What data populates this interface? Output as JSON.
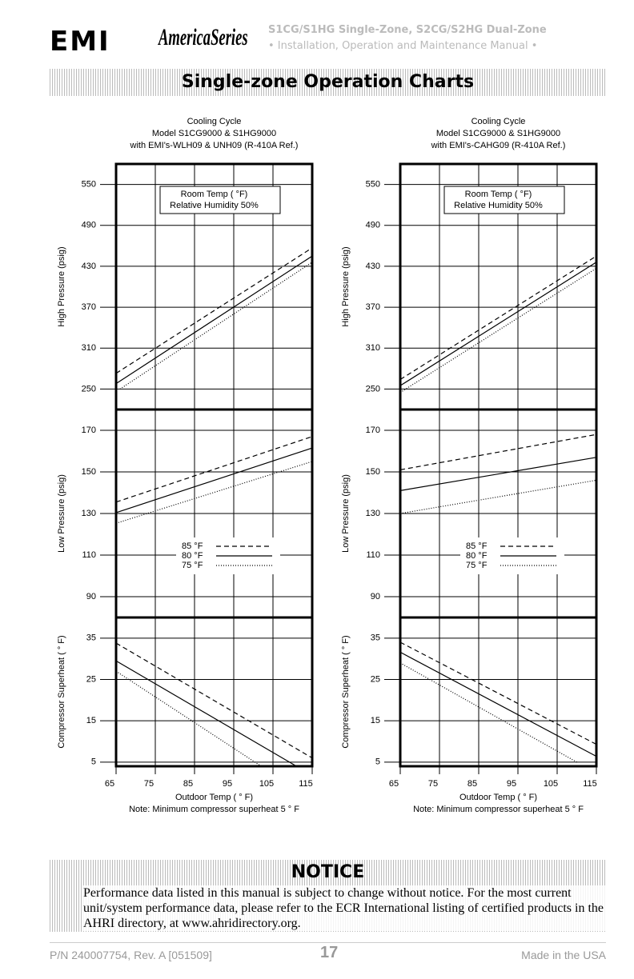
{
  "header": {
    "logo": "EMI",
    "series_logo": "AmericaSeries",
    "line1": "S1CG/S1HG Single-Zone, S2CG/S2HG Dual-Zone",
    "line2": "• Installation, Operation and Maintenance Manual •"
  },
  "section_title": "Single-zone Operation Charts",
  "chart_data": [
    {
      "type": "line",
      "title": [
        "Cooling Cycle",
        "Model S1CG9000 & S1HG9000",
        "with EMI's-WLH09 & UNH09 (R-410A Ref.)"
      ],
      "xlabel": "Outdoor Temp ( ° F)",
      "note": "Note: Minimum compressor superheat 5 ° F",
      "xlim": [
        65,
        115
      ],
      "xticks": [
        65,
        75,
        85,
        95,
        105,
        115
      ],
      "grid": true,
      "box_text": [
        "Room Temp ( °F)",
        "Relative Humidity 50%"
      ],
      "series": [
        {
          "name": "85 °F",
          "color": "#000000",
          "dash": "dashed"
        },
        {
          "name": "80 °F",
          "color": "#000000",
          "dash": "solid"
        },
        {
          "name": "75 °F",
          "color": "#000000",
          "dash": "dotted"
        }
      ],
      "panels": [
        {
          "ylabel": "High Pressure (psig)",
          "ylim": [
            220,
            580
          ],
          "yticks": [
            250,
            310,
            370,
            430,
            490,
            550
          ],
          "lines": [
            {
              "x": [
                65,
                115
              ],
              "values": [
                273,
                457
              ]
            },
            {
              "x": [
                65,
                115
              ],
              "values": [
                258,
                445
              ]
            },
            {
              "x": [
                66,
                115
              ],
              "values": [
                250,
                436
              ]
            }
          ]
        },
        {
          "ylabel": "Low Pressure (psig)",
          "ylim": [
            80,
            180
          ],
          "yticks": [
            90,
            110,
            130,
            150,
            170
          ],
          "legend": true,
          "lines": [
            {
              "x": [
                65,
                115
              ],
              "values": [
                135.5,
                167
              ]
            },
            {
              "x": [
                65,
                115
              ],
              "values": [
                130.4,
                161.5
              ]
            },
            {
              "x": [
                65,
                115
              ],
              "values": [
                125.3,
                155
              ]
            }
          ]
        },
        {
          "ylabel": "Compressor Superheat ( ° F)",
          "ylim": [
            4,
            40
          ],
          "yticks": [
            5,
            15,
            25,
            35
          ],
          "lines": [
            {
              "x": [
                65,
                115
              ],
              "values": [
                33.8,
                6
              ]
            },
            {
              "x": [
                65,
                111
              ],
              "values": [
                29.5,
                4
              ]
            },
            {
              "x": [
                65,
                102
              ],
              "values": [
                27,
                4
              ]
            }
          ]
        }
      ]
    },
    {
      "type": "line",
      "title": [
        "Cooling Cycle",
        "Model S1CG9000 & S1HG9000",
        "with EMI's-CAHG09 (R-410A Ref.)"
      ],
      "xlabel": "Outdoor Temp ( ° F)",
      "note": "Note: Minimum compressor superheat 5 ° F",
      "xlim": [
        65,
        115
      ],
      "xticks": [
        65,
        75,
        85,
        95,
        105,
        115
      ],
      "grid": true,
      "box_text": [
        "Room Temp ( °F)",
        "Relative Humidity 50%"
      ],
      "series": [
        {
          "name": "85 °F",
          "color": "#000000",
          "dash": "dashed"
        },
        {
          "name": "80 °F",
          "color": "#000000",
          "dash": "solid"
        },
        {
          "name": "75 °F",
          "color": "#000000",
          "dash": "dotted"
        }
      ],
      "panels": [
        {
          "ylabel": "High Pressure (psig)",
          "ylim": [
            220,
            580
          ],
          "yticks": [
            250,
            310,
            370,
            430,
            490,
            550
          ],
          "lines": [
            {
              "x": [
                65,
                115
              ],
              "values": [
                264,
                445
              ]
            },
            {
              "x": [
                65,
                115
              ],
              "values": [
                255,
                436
              ]
            },
            {
              "x": [
                65,
                115
              ],
              "values": [
                245,
                427
              ]
            }
          ]
        },
        {
          "ylabel": "Low Pressure (psig)",
          "ylim": [
            80,
            180
          ],
          "yticks": [
            90,
            110,
            130,
            150,
            170
          ],
          "legend": true,
          "lines": [
            {
              "x": [
                65,
                115
              ],
              "values": [
                151,
                168
              ]
            },
            {
              "x": [
                65,
                115
              ],
              "values": [
                141,
                157
              ]
            },
            {
              "x": [
                65,
                115
              ],
              "values": [
                130,
                146
              ]
            }
          ]
        },
        {
          "ylabel": "Compressor Superheat ( ° F)",
          "ylim": [
            4,
            40
          ],
          "yticks": [
            5,
            15,
            25,
            35
          ],
          "lines": [
            {
              "x": [
                65,
                115
              ],
              "values": [
                34,
                9.3
              ]
            },
            {
              "x": [
                65,
                115
              ],
              "values": [
                31.6,
                6.4
              ]
            },
            {
              "x": [
                65,
                110
              ],
              "values": [
                29,
                5
              ]
            }
          ]
        }
      ]
    }
  ],
  "notice": {
    "title": "NOTICE",
    "text": "Performance data listed in this manual is subject to change without notice. For the most current unit/system performance data, please refer to the ECR International listing of certified products in the AHRI directory, at www.ahridirectory.org."
  },
  "footer": {
    "part": "P/N 240007754, Rev. A [051509]",
    "page": "17",
    "made": "Made in the USA"
  }
}
